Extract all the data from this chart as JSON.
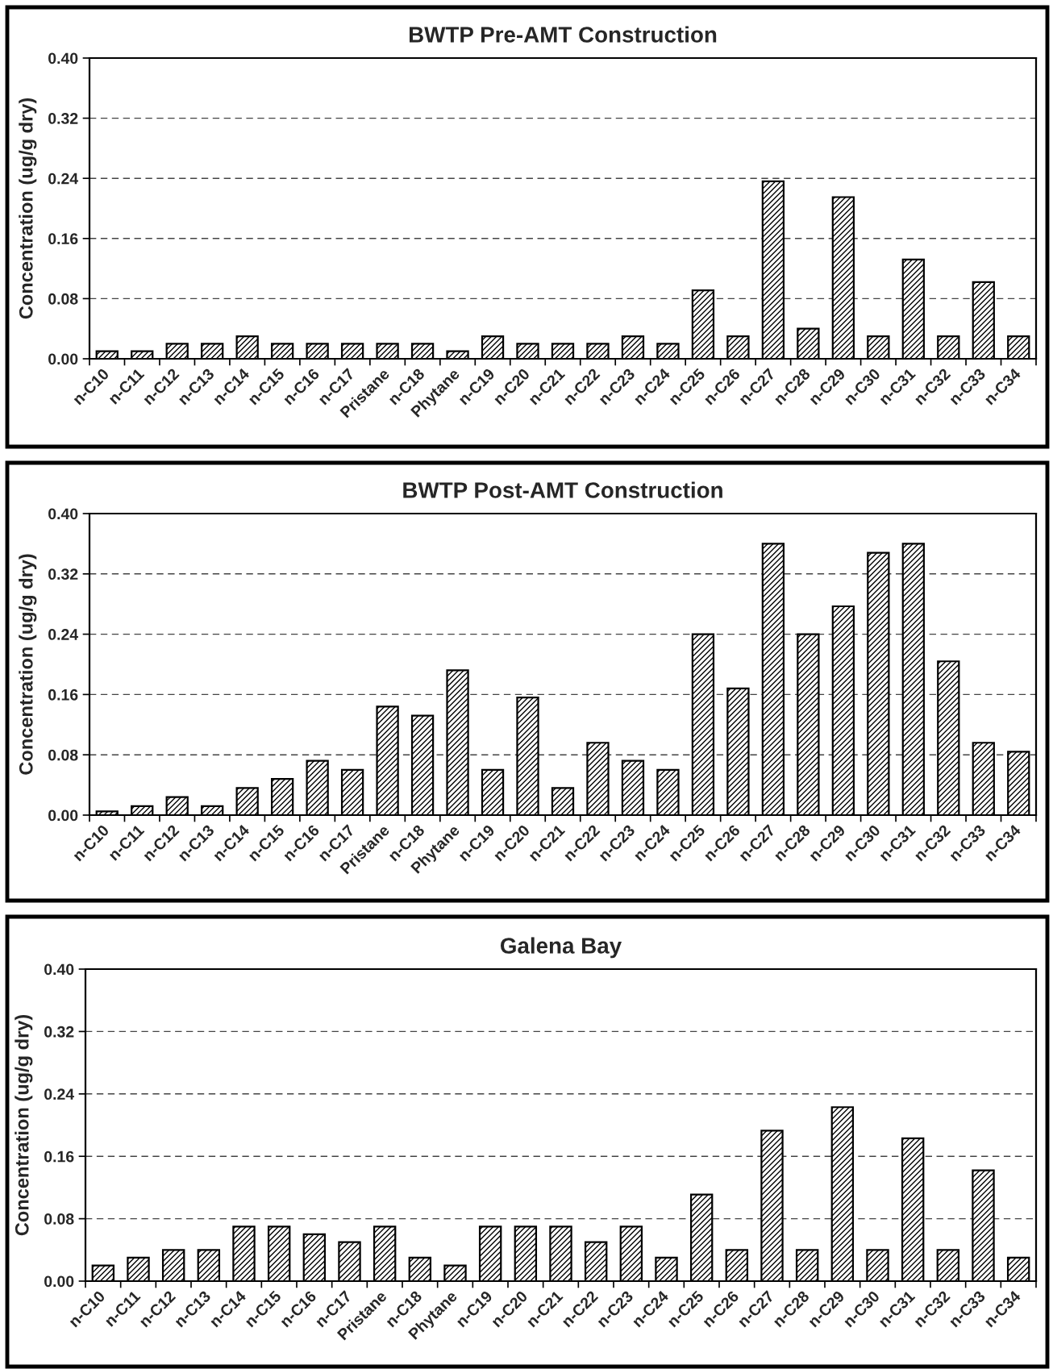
{
  "chart_data": [
    {
      "type": "bar",
      "title": "BWTP Pre-AMT Construction",
      "ylabel": "Concentration (ug/g dry)",
      "categories": [
        "n-C10",
        "n-C11",
        "n-C12",
        "n-C13",
        "n-C14",
        "n-C15",
        "n-C16",
        "n-C17",
        "Pristane",
        "n-C18",
        "Phytane",
        "n-C19",
        "n-C20",
        "n-C21",
        "n-C22",
        "n-C23",
        "n-C24",
        "n-C25",
        "n-C26",
        "n-C27",
        "n-C28",
        "n-C29",
        "n-C30",
        "n-C31",
        "n-C32",
        "n-C33",
        "n-C34"
      ],
      "values": [
        0.01,
        0.01,
        0.02,
        0.02,
        0.03,
        0.02,
        0.02,
        0.02,
        0.02,
        0.02,
        0.01,
        0.03,
        0.02,
        0.02,
        0.02,
        0.03,
        0.02,
        0.091,
        0.03,
        0.236,
        0.04,
        0.215,
        0.03,
        0.132,
        0.03,
        0.102,
        0.03
      ],
      "color": "#000000",
      "ylim": [
        0,
        0.4
      ],
      "yticks": [
        {
          "value": 0,
          "label": "0.00"
        },
        {
          "value": 0.08,
          "label": "0.08"
        },
        {
          "value": 0.16,
          "label": "0.16"
        },
        {
          "value": 0.24,
          "label": "0.24"
        },
        {
          "value": 0.32,
          "label": "0.32"
        },
        {
          "value": 0.4,
          "label": "0.40"
        }
      ],
      "grid": "y"
    },
    {
      "type": "bar",
      "title": "BWTP Post-AMT Construction",
      "ylabel": "Concentration (ug/g dry)",
      "categories": [
        "n-C10",
        "n-C11",
        "n-C12",
        "n-C13",
        "n-C14",
        "n-C15",
        "n-C16",
        "n-C17",
        "Pristane",
        "n-C18",
        "Phytane",
        "n-C19",
        "n-C20",
        "n-C21",
        "n-C22",
        "n-C23",
        "n-C24",
        "n-C25",
        "n-C26",
        "n-C27",
        "n-C28",
        "n-C29",
        "n-C30",
        "n-C31",
        "n-C32",
        "n-C33",
        "n-C34"
      ],
      "values": [
        0.005,
        0.012,
        0.024,
        0.012,
        0.036,
        0.048,
        0.072,
        0.06,
        0.144,
        0.132,
        0.192,
        0.06,
        0.156,
        0.036,
        0.096,
        0.072,
        0.06,
        0.24,
        0.168,
        0.36,
        0.24,
        0.277,
        0.348,
        0.36,
        0.204,
        0.096,
        0.084
      ],
      "color": "#000000",
      "ylim": [
        0,
        0.4
      ],
      "yticks": [
        {
          "value": 0,
          "label": "0.00"
        },
        {
          "value": 0.08,
          "label": "0.08"
        },
        {
          "value": 0.16,
          "label": "0.16"
        },
        {
          "value": 0.24,
          "label": "0.24"
        },
        {
          "value": 0.32,
          "label": "0.32"
        },
        {
          "value": 0.4,
          "label": "0.40"
        }
      ],
      "grid": "y"
    },
    {
      "type": "bar",
      "title": "Galena Bay",
      "ylabel": "Concentration (ug/g dry)",
      "categories": [
        "n-C10",
        "n-C11",
        "n-C12",
        "n-C13",
        "n-C14",
        "n-C15",
        "n-C16",
        "n-C17",
        "Pristane",
        "n-C18",
        "Phytane",
        "n-C19",
        "n-C20",
        "n-C21",
        "n-C22",
        "n-C23",
        "n-C24",
        "n-C25",
        "n-C26",
        "n-C27",
        "n-C28",
        "n-C29",
        "n-C30",
        "n-C31",
        "n-C32",
        "n-C33",
        "n-C34"
      ],
      "values": [
        0.02,
        0.03,
        0.04,
        0.04,
        0.07,
        0.07,
        0.06,
        0.05,
        0.07,
        0.03,
        0.02,
        0.07,
        0.07,
        0.07,
        0.05,
        0.07,
        0.03,
        0.111,
        0.04,
        0.193,
        0.04,
        0.223,
        0.04,
        0.183,
        0.04,
        0.142,
        0.03
      ],
      "color": "#000000",
      "ylim": [
        0,
        0.4
      ],
      "yticks": [
        {
          "value": 0,
          "label": "0.00"
        },
        {
          "value": 0.08,
          "label": "0.08"
        },
        {
          "value": 0.16,
          "label": "0.16"
        },
        {
          "value": 0.24,
          "label": "0.24"
        },
        {
          "value": 0.32,
          "label": "0.32"
        },
        {
          "value": 0.4,
          "label": "0.40"
        }
      ],
      "grid": "y"
    }
  ]
}
